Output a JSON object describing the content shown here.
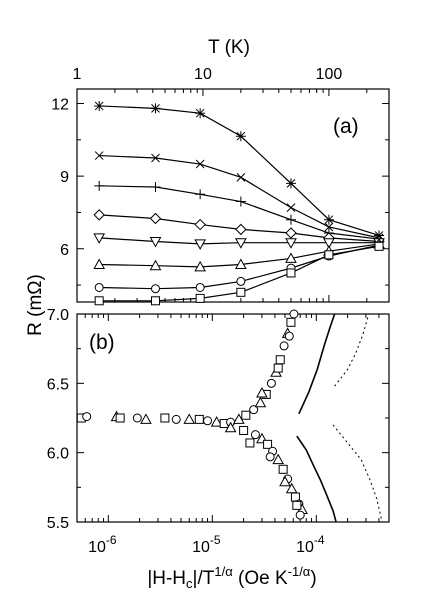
{
  "chart_data": [
    {
      "panel": "a",
      "type": "line",
      "panel_label": "(a)",
      "xlabel": "T (K)",
      "ylabel": "R (mΩ)",
      "xscale": "log",
      "xlim": [
        1,
        300
      ],
      "ylim": [
        3.8,
        12.6
      ],
      "xticks": [
        {
          "value": 1,
          "label": "1"
        },
        {
          "value": 10,
          "label": "10"
        },
        {
          "value": 100,
          "label": "100"
        }
      ],
      "yticks": [
        {
          "value": 6,
          "label": "6"
        },
        {
          "value": 9,
          "label": "9"
        },
        {
          "value": 12,
          "label": "12"
        }
      ],
      "x": [
        1.5,
        4.2,
        9.5,
        20,
        50,
        100,
        250
      ],
      "series": [
        {
          "marker": "asterisk",
          "values": [
            11.9,
            11.8,
            11.6,
            10.65,
            8.7,
            7.2,
            6.55
          ]
        },
        {
          "marker": "cross",
          "values": [
            9.85,
            9.75,
            9.5,
            8.95,
            7.7,
            6.9,
            6.45
          ]
        },
        {
          "marker": "plus",
          "values": [
            8.6,
            8.55,
            8.25,
            7.95,
            7.2,
            6.65,
            6.4
          ]
        },
        {
          "marker": "diamond",
          "values": [
            7.4,
            7.25,
            7.0,
            6.8,
            6.65,
            6.45,
            6.3
          ]
        },
        {
          "marker": "triangle-down",
          "values": [
            6.45,
            6.3,
            6.2,
            6.25,
            6.25,
            6.25,
            6.25
          ]
        },
        {
          "marker": "triangle-up",
          "values": [
            5.35,
            5.3,
            5.25,
            5.35,
            5.6,
            5.9,
            6.2
          ]
        },
        {
          "marker": "circle",
          "values": [
            4.4,
            4.35,
            4.4,
            4.65,
            5.2,
            5.7,
            6.15
          ]
        },
        {
          "marker": "square",
          "values": [
            3.85,
            3.85,
            3.95,
            4.2,
            5.0,
            5.75,
            6.1
          ]
        }
      ]
    },
    {
      "panel": "b",
      "type": "scatter",
      "panel_label": "(b)",
      "xlabel": "|H-H",
      "xlabel_sub": "c",
      "xlabel_mid": "|/T",
      "xlabel_sup": "1/α",
      "xlabel_end": " (Oe K",
      "xlabel_sup2": "-1/α",
      "xlabel_close": ")",
      "xscale": "log",
      "xlim": [
        5e-07,
        0.0005
      ],
      "ylim": [
        5.5,
        7.0
      ],
      "xticks": [
        {
          "value": 1e-06,
          "base": "10",
          "exp": "-6"
        },
        {
          "value": 1e-05,
          "base": "10",
          "exp": "-5"
        },
        {
          "value": 0.0001,
          "base": "10",
          "exp": "-4"
        }
      ],
      "yticks": [
        {
          "value": 5.5,
          "label": "5.5"
        },
        {
          "value": 6.0,
          "label": "6.0"
        },
        {
          "value": 6.5,
          "label": "6.5"
        },
        {
          "value": 7.0,
          "label": "7.0"
        }
      ],
      "upper_branch": {
        "points": [
          [
            1.5e-05,
            6.22
          ],
          [
            1.8e-05,
            6.24
          ],
          [
            2.1e-05,
            6.27
          ],
          [
            2.5e-05,
            6.31
          ],
          [
            2.9e-05,
            6.36
          ],
          [
            3.3e-05,
            6.42
          ],
          [
            3.7e-05,
            6.5
          ],
          [
            4.1e-05,
            6.58
          ],
          [
            4.5e-05,
            6.67
          ],
          [
            4.9e-05,
            6.77
          ],
          [
            5.3e-05,
            6.86
          ],
          [
            5.7e-05,
            6.94
          ],
          [
            6.1e-05,
            7.0
          ],
          [
            3e-05,
            6.43
          ],
          [
            4.3e-05,
            6.61
          ],
          [
            5.5e-05,
            6.84
          ]
        ]
      },
      "lower_branch": {
        "points": [
          [
            1.5e-05,
            6.18
          ],
          [
            2e-05,
            6.16
          ],
          [
            2.6e-05,
            6.13
          ],
          [
            3e-05,
            6.1
          ],
          [
            3.4e-05,
            6.06
          ],
          [
            3.8e-05,
            6.01
          ],
          [
            4.3e-05,
            5.95
          ],
          [
            4.8e-05,
            5.88
          ],
          [
            5.3e-05,
            5.81
          ],
          [
            5.8e-05,
            5.74
          ],
          [
            6.3e-05,
            5.68
          ],
          [
            6.8e-05,
            5.63
          ],
          [
            7.3e-05,
            5.59
          ],
          [
            2.3e-05,
            6.07
          ],
          [
            3.6e-05,
            5.97
          ],
          [
            5e-05,
            5.79
          ],
          [
            6.5e-05,
            5.62
          ],
          [
            7e-05,
            5.55
          ]
        ]
      },
      "plateau": {
        "points": [
          [
            5.5e-07,
            6.25
          ],
          [
            6.2e-07,
            6.26
          ],
          [
            1.2e-06,
            6.26
          ],
          [
            1.3e-06,
            6.25
          ],
          [
            1.9e-06,
            6.25
          ],
          [
            2.3e-06,
            6.24
          ],
          [
            3.5e-06,
            6.25
          ],
          [
            4.5e-06,
            6.24
          ],
          [
            6e-06,
            6.24
          ],
          [
            7.5e-06,
            6.24
          ],
          [
            9e-06,
            6.23
          ],
          [
            1.1e-05,
            6.22
          ],
          [
            1.3e-05,
            6.21
          ]
        ]
      },
      "solid_curves": [
        [
          [
            6.8e-05,
            6.28
          ],
          [
            8.5e-05,
            6.44
          ],
          [
            0.000102,
            6.6
          ],
          [
            0.00012,
            6.78
          ],
          [
            0.000135,
            6.9
          ],
          [
            0.00015,
            7.0
          ]
        ],
        [
          [
            6.5e-05,
            6.12
          ],
          [
            8e-05,
            6.02
          ],
          [
            9.5e-05,
            5.9
          ],
          [
            0.00011,
            5.8
          ],
          [
            0.000125,
            5.7
          ],
          [
            0.000145,
            5.58
          ],
          [
            0.000155,
            5.5
          ]
        ]
      ],
      "dotted_curves": [
        [
          [
            0.00015,
            6.48
          ],
          [
            0.0002,
            6.6
          ],
          [
            0.00024,
            6.72
          ],
          [
            0.00028,
            6.85
          ],
          [
            0.00032,
            7.0
          ]
        ],
        [
          [
            0.000145,
            6.2
          ],
          [
            0.0002,
            6.07
          ],
          [
            0.00027,
            5.95
          ],
          [
            0.00033,
            5.8
          ],
          [
            0.00038,
            5.67
          ],
          [
            0.00043,
            5.5
          ]
        ]
      ]
    }
  ]
}
